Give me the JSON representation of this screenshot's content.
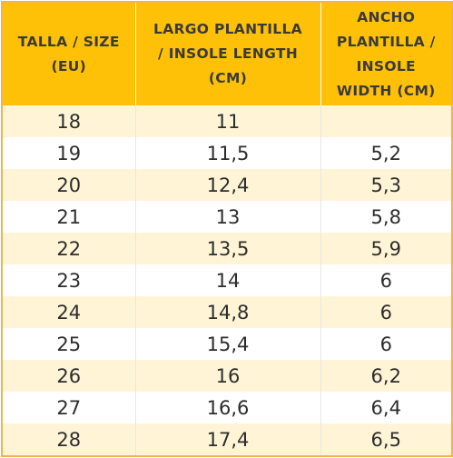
{
  "table": {
    "headers": [
      {
        "lines": [
          "TALLA / SIZE",
          "(EU)"
        ]
      },
      {
        "lines": [
          "LARGO PLANTILLA",
          "/ INSOLE LENGTH",
          "(CM)"
        ]
      },
      {
        "lines": [
          "ANCHO",
          "PLANTILLA /",
          "INSOLE",
          "WIDTH (CM)"
        ]
      }
    ],
    "rows": [
      [
        "18",
        "11",
        ""
      ],
      [
        "19",
        "11,5",
        "5,2"
      ],
      [
        "20",
        "12,4",
        "5,3"
      ],
      [
        "21",
        "13",
        "5,8"
      ],
      [
        "22",
        "13,5",
        "5,9"
      ],
      [
        "23",
        "14",
        "6"
      ],
      [
        "24",
        "14,8",
        "6"
      ],
      [
        "25",
        "15,4",
        "6"
      ],
      [
        "26",
        "16",
        "6,2"
      ],
      [
        "27",
        "16,6",
        "6,4"
      ],
      [
        "28",
        "17,4",
        "6,5"
      ]
    ]
  },
  "colors": {
    "header_bg": "#ffc107",
    "stripe_bg": "#fff5d6",
    "border": "#f3b24a"
  }
}
